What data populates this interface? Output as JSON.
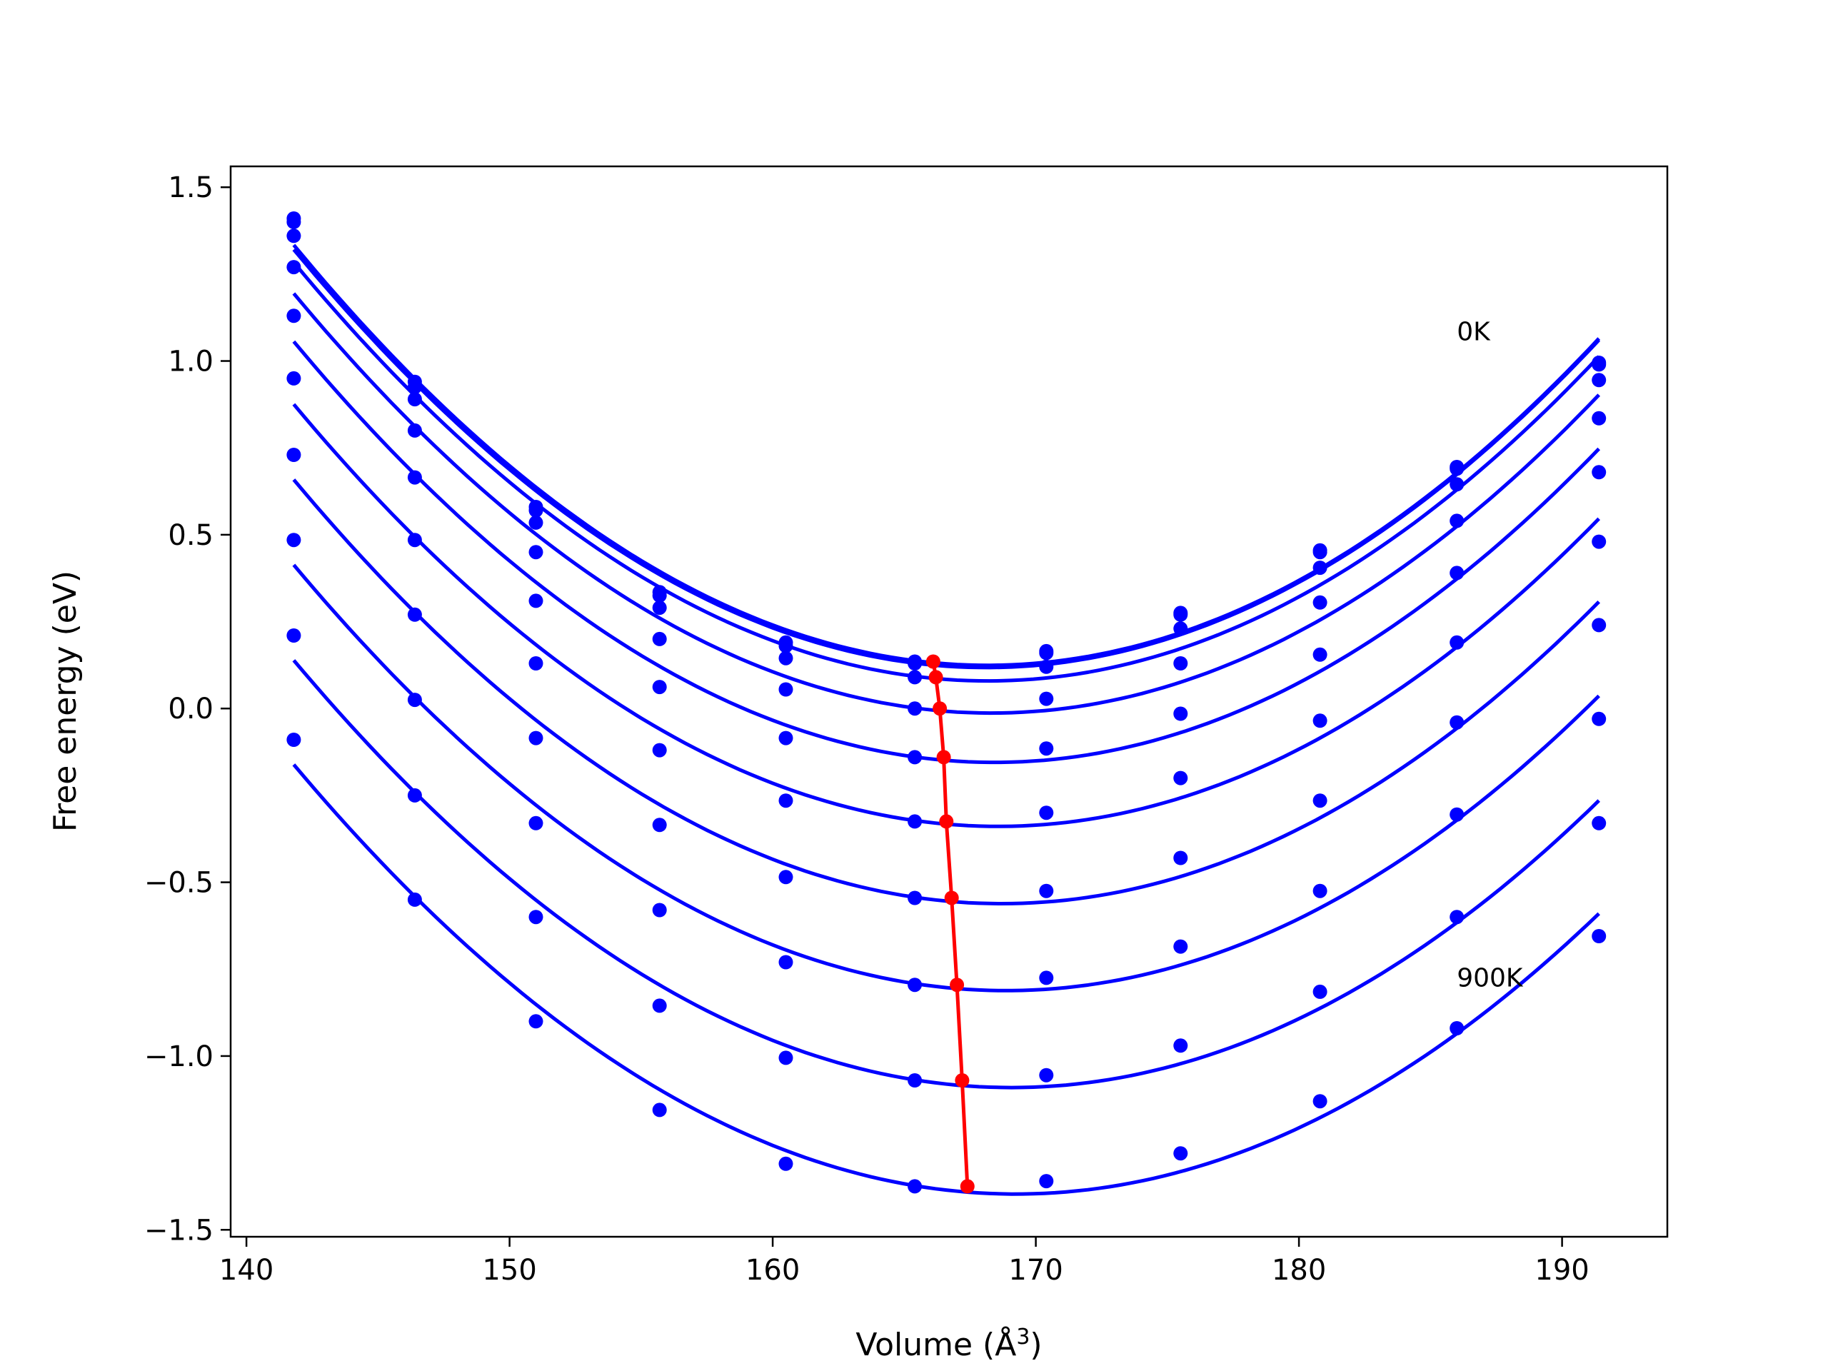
{
  "chart_data": {
    "type": "line",
    "xlabel": "Volume (Å",
    "xlabel_sup": "3",
    "xlabel_end": ")",
    "ylabel": "Free energy (eV)",
    "xlim": [
      139.4,
      194.0
    ],
    "ylim": [
      -1.52,
      1.56
    ],
    "x_ticks": [
      140,
      150,
      160,
      170,
      180,
      190
    ],
    "x_tick_labels": [
      "140",
      "150",
      "160",
      "170",
      "180",
      "190"
    ],
    "y_ticks": [
      1.5,
      1.0,
      0.5,
      0.0,
      -0.5,
      -1.0,
      -1.5
    ],
    "y_tick_labels": [
      "1.5",
      "1.0",
      "0.5",
      "0.0",
      "−0.5",
      "−1.0",
      "−1.5"
    ],
    "grid": false,
    "colors": {
      "curves": "#0000ff",
      "minimum_line": "#ff0000"
    },
    "x": [
      141.8,
      146.4,
      151.0,
      155.7,
      160.5,
      165.4,
      170.4,
      175.5,
      180.8,
      186.0,
      191.4
    ],
    "series": [
      {
        "values": [
          1.41,
          0.94,
          0.58,
          0.335,
          0.19,
          0.135,
          0.165,
          0.275,
          0.455,
          0.695,
          0.995
        ]
      },
      {
        "values": [
          1.4,
          0.925,
          0.57,
          0.325,
          0.18,
          0.13,
          0.16,
          0.27,
          0.45,
          0.69,
          0.99
        ]
      },
      {
        "values": [
          1.36,
          0.89,
          0.535,
          0.29,
          0.145,
          0.09,
          0.12,
          0.23,
          0.405,
          0.645,
          0.945
        ]
      },
      {
        "values": [
          1.27,
          0.8,
          0.45,
          0.2,
          0.055,
          0.0,
          0.028,
          0.13,
          0.305,
          0.54,
          0.835
        ]
      },
      {
        "values": [
          1.13,
          0.665,
          0.31,
          0.062,
          -0.085,
          -0.14,
          -0.115,
          -0.015,
          0.155,
          0.39,
          0.68
        ]
      },
      {
        "values": [
          0.95,
          0.485,
          0.13,
          -0.12,
          -0.265,
          -0.325,
          -0.3,
          -0.2,
          -0.035,
          0.19,
          0.48
        ]
      },
      {
        "values": [
          0.73,
          0.27,
          -0.085,
          -0.335,
          -0.485,
          -0.545,
          -0.525,
          -0.43,
          -0.265,
          -0.04,
          0.24
        ]
      },
      {
        "values": [
          0.485,
          0.025,
          -0.33,
          -0.58,
          -0.73,
          -0.795,
          -0.775,
          -0.685,
          -0.525,
          -0.305,
          -0.03
        ]
      },
      {
        "values": [
          0.21,
          -0.25,
          -0.6,
          -0.855,
          -1.005,
          -1.07,
          -1.055,
          -0.97,
          -0.815,
          -0.6,
          -0.33
        ]
      },
      {
        "values": [
          -0.09,
          -0.55,
          -0.9,
          -1.155,
          -1.31,
          -1.375,
          -1.36,
          -1.28,
          -1.13,
          -0.92,
          -0.655
        ]
      }
    ],
    "minimum_line": {
      "x": [
        166.1,
        166.2,
        166.35,
        166.5,
        166.6,
        166.8,
        167.0,
        167.2,
        167.4
      ],
      "values": [
        0.135,
        0.09,
        0.0,
        -0.14,
        -0.325,
        -0.545,
        -0.795,
        -1.07,
        -1.375
      ]
    },
    "annotations": [
      {
        "text": "0K",
        "x": 186.0,
        "y": 1.06
      },
      {
        "text": "900K",
        "x": 186.0,
        "y": -0.8
      }
    ]
  }
}
